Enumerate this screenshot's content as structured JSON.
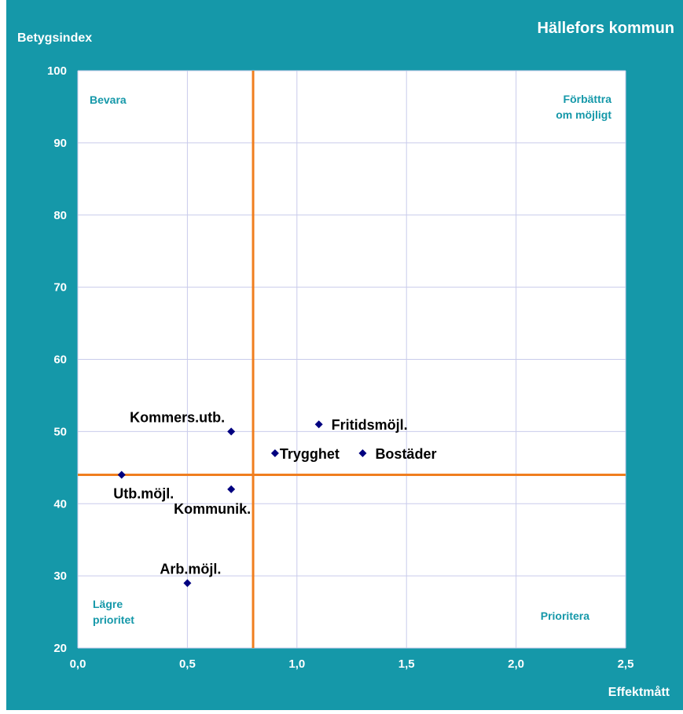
{
  "chart_data": {
    "type": "scatter",
    "title": "Hällefors kommun",
    "xlabel": "Effektmått",
    "ylabel": "Betygsindex",
    "xlim": [
      0,
      2.5
    ],
    "ylim": [
      20,
      100
    ],
    "xticks": [
      0,
      0.5,
      1.0,
      1.5,
      2.0,
      2.5
    ],
    "xtick_labels": [
      "0,0",
      "0,5",
      "1,0",
      "1,5",
      "2,0",
      "2,5"
    ],
    "yticks": [
      20,
      30,
      40,
      50,
      60,
      70,
      80,
      90,
      100
    ],
    "ytick_labels": [
      "20",
      "30",
      "40",
      "50",
      "60",
      "70",
      "80",
      "90",
      "100"
    ],
    "grid": true,
    "reference_lines": {
      "x": 0.8,
      "y": 44
    },
    "quadrant_labels": {
      "top_left": "Bevara",
      "top_right_line1": "Förbättra",
      "top_right_line2": "om möjligt",
      "bottom_left_line1": "Lägre",
      "bottom_left_line2": "prioritet",
      "bottom_right": "Prioritera"
    },
    "points": [
      {
        "label": "Kommers.utb.",
        "x": 0.7,
        "y": 50
      },
      {
        "label": "Fritidsmöjl.",
        "x": 1.1,
        "y": 51
      },
      {
        "label": "Trygghet",
        "x": 0.9,
        "y": 47
      },
      {
        "label": "Bostäder",
        "x": 1.3,
        "y": 47
      },
      {
        "label": "Utb.möjl.",
        "x": 0.2,
        "y": 44
      },
      {
        "label": "Kommunik.",
        "x": 0.7,
        "y": 42
      },
      {
        "label": "Arb.möjl.",
        "x": 0.5,
        "y": 29
      }
    ],
    "colors": {
      "frame": "#1598A9",
      "plot_bg": "#FFFFFF",
      "grid": "#C9CBEB",
      "reference_line": "#F07E1E",
      "marker": "#000080",
      "quadrant_text": "#1598A9",
      "frame_text": "#FFFFFF"
    }
  }
}
